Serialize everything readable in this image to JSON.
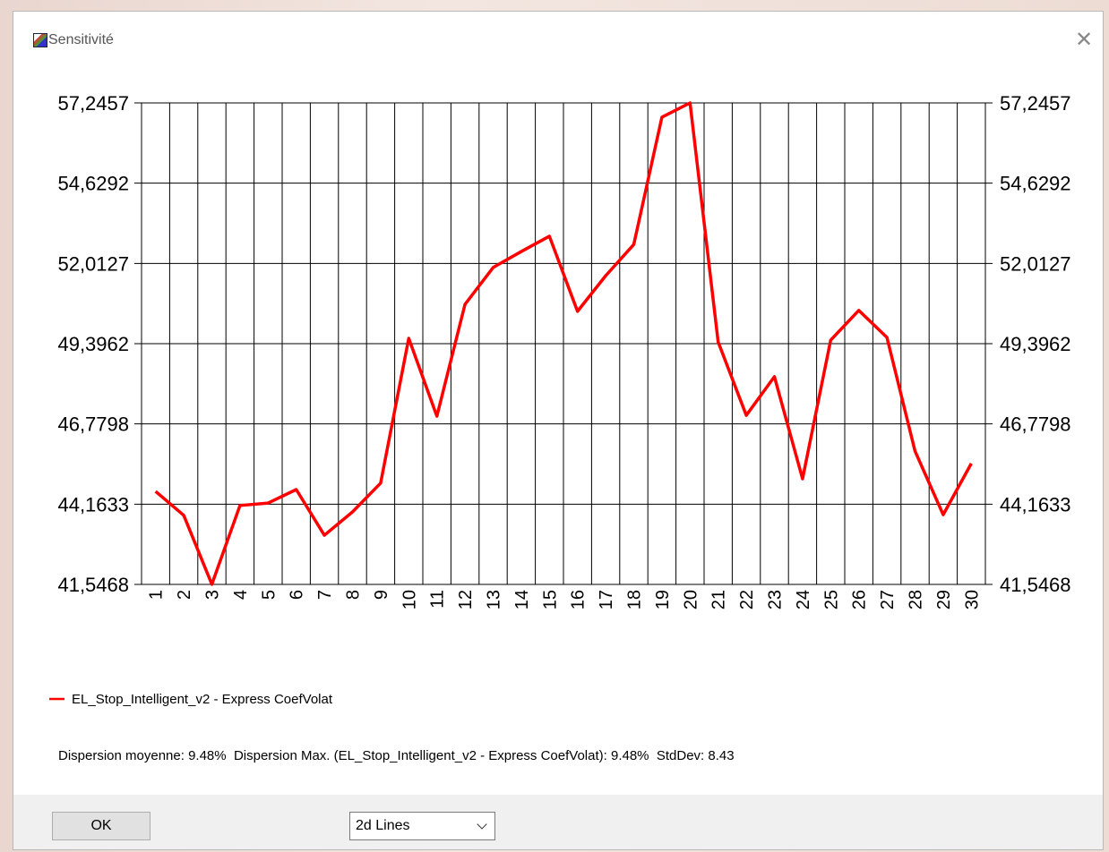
{
  "window": {
    "title": "Sensitivité"
  },
  "chart_data": {
    "type": "line",
    "categories": [
      "1",
      "2",
      "3",
      "4",
      "5",
      "6",
      "7",
      "8",
      "9",
      "10",
      "11",
      "12",
      "13",
      "14",
      "15",
      "16",
      "17",
      "18",
      "19",
      "20",
      "21",
      "22",
      "23",
      "24",
      "25",
      "26",
      "27",
      "28",
      "29",
      "30"
    ],
    "series": [
      {
        "name": "EL_Stop_Intelligent_v2 - Express CoefVolat",
        "color": "#ff0000",
        "values": [
          44.58,
          43.8,
          41.55,
          44.12,
          44.2,
          44.64,
          43.15,
          43.91,
          44.85,
          49.57,
          47.03,
          50.68,
          51.88,
          52.4,
          52.9,
          50.45,
          51.61,
          52.63,
          56.78,
          57.2457,
          49.45,
          47.06,
          48.32,
          44.99,
          49.51,
          50.48,
          49.6,
          45.89,
          43.82,
          45.49
        ]
      }
    ],
    "ylim": [
      41.5468,
      57.2457
    ],
    "yticks": [
      {
        "value": 41.5468,
        "label": "41,5468"
      },
      {
        "value": 44.1633,
        "label": "44,1633"
      },
      {
        "value": 46.7798,
        "label": "46,7798"
      },
      {
        "value": 49.3962,
        "label": "49,3962"
      },
      {
        "value": 52.0127,
        "label": "52,0127"
      },
      {
        "value": 54.6292,
        "label": "54,6292"
      },
      {
        "value": 57.2457,
        "label": "57,2457"
      }
    ],
    "grid": true
  },
  "stats": "Dispersion moyenne: 9.48%  Dispersion Max. (EL_Stop_Intelligent_v2 - Express CoefVolat): 9.48%  StdDev: 8.43",
  "buttons": {
    "ok": "OK"
  },
  "view_select": "2d Lines"
}
